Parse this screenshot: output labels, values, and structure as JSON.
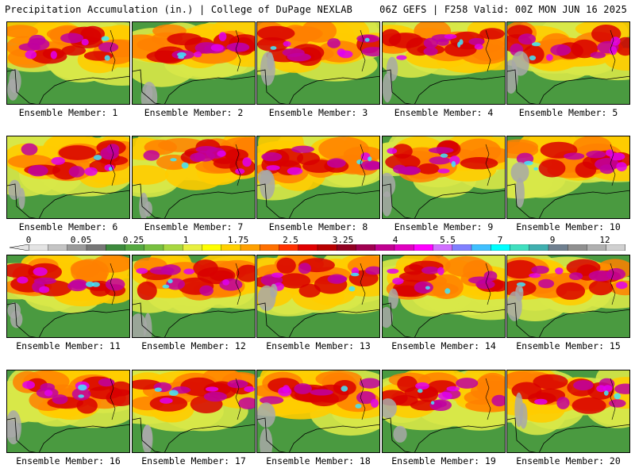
{
  "header": {
    "left": "Precipitation Accumulation (in.) | College of DuPage NEXLAB",
    "right": "06Z GEFS | F258 Valid: 00Z MON JUN 16 2025"
  },
  "panels": [
    {
      "label": "Ensemble Member: 1"
    },
    {
      "label": "Ensemble Member: 2"
    },
    {
      "label": "Ensemble Member: 3"
    },
    {
      "label": "Ensemble Member: 4"
    },
    {
      "label": "Ensemble Member: 5"
    },
    {
      "label": "Ensemble Member: 6"
    },
    {
      "label": "Ensemble Member: 7"
    },
    {
      "label": "Ensemble Member: 8"
    },
    {
      "label": "Ensemble Member: 9"
    },
    {
      "label": "Ensemble Member: 10"
    },
    {
      "label": "Ensemble Member: 11"
    },
    {
      "label": "Ensemble Member: 12"
    },
    {
      "label": "Ensemble Member: 13"
    },
    {
      "label": "Ensemble Member: 14"
    },
    {
      "label": "Ensemble Member: 15"
    },
    {
      "label": "Ensemble Member: 16"
    },
    {
      "label": "Ensemble Member: 17"
    },
    {
      "label": "Ensemble Member: 18"
    },
    {
      "label": "Ensemble Member: 19"
    },
    {
      "label": "Ensemble Member: 20"
    }
  ],
  "colorbar": {
    "labels": [
      "0",
      "0.05",
      "0.25",
      "1",
      "1.75",
      "2.5",
      "3.25",
      "4",
      "5.5",
      "7",
      "9",
      "12"
    ],
    "colors": [
      "#e4e4e4",
      "#c4c4c4",
      "#9a9a9a",
      "#777777",
      "#3d8a3d",
      "#55a840",
      "#78c040",
      "#a8d840",
      "#e8f040",
      "#ffff00",
      "#ffd000",
      "#ffa000",
      "#ff7000",
      "#ff3000",
      "#e00000",
      "#b80000",
      "#900020",
      "#a00050",
      "#c00090",
      "#e000c0",
      "#ff00ff",
      "#d070ff",
      "#8080ff",
      "#40c0ff",
      "#00ffff",
      "#40e0c0",
      "#40b0b0",
      "#708090",
      "#909090",
      "#b0b0b0",
      "#d0d0d0"
    ]
  }
}
